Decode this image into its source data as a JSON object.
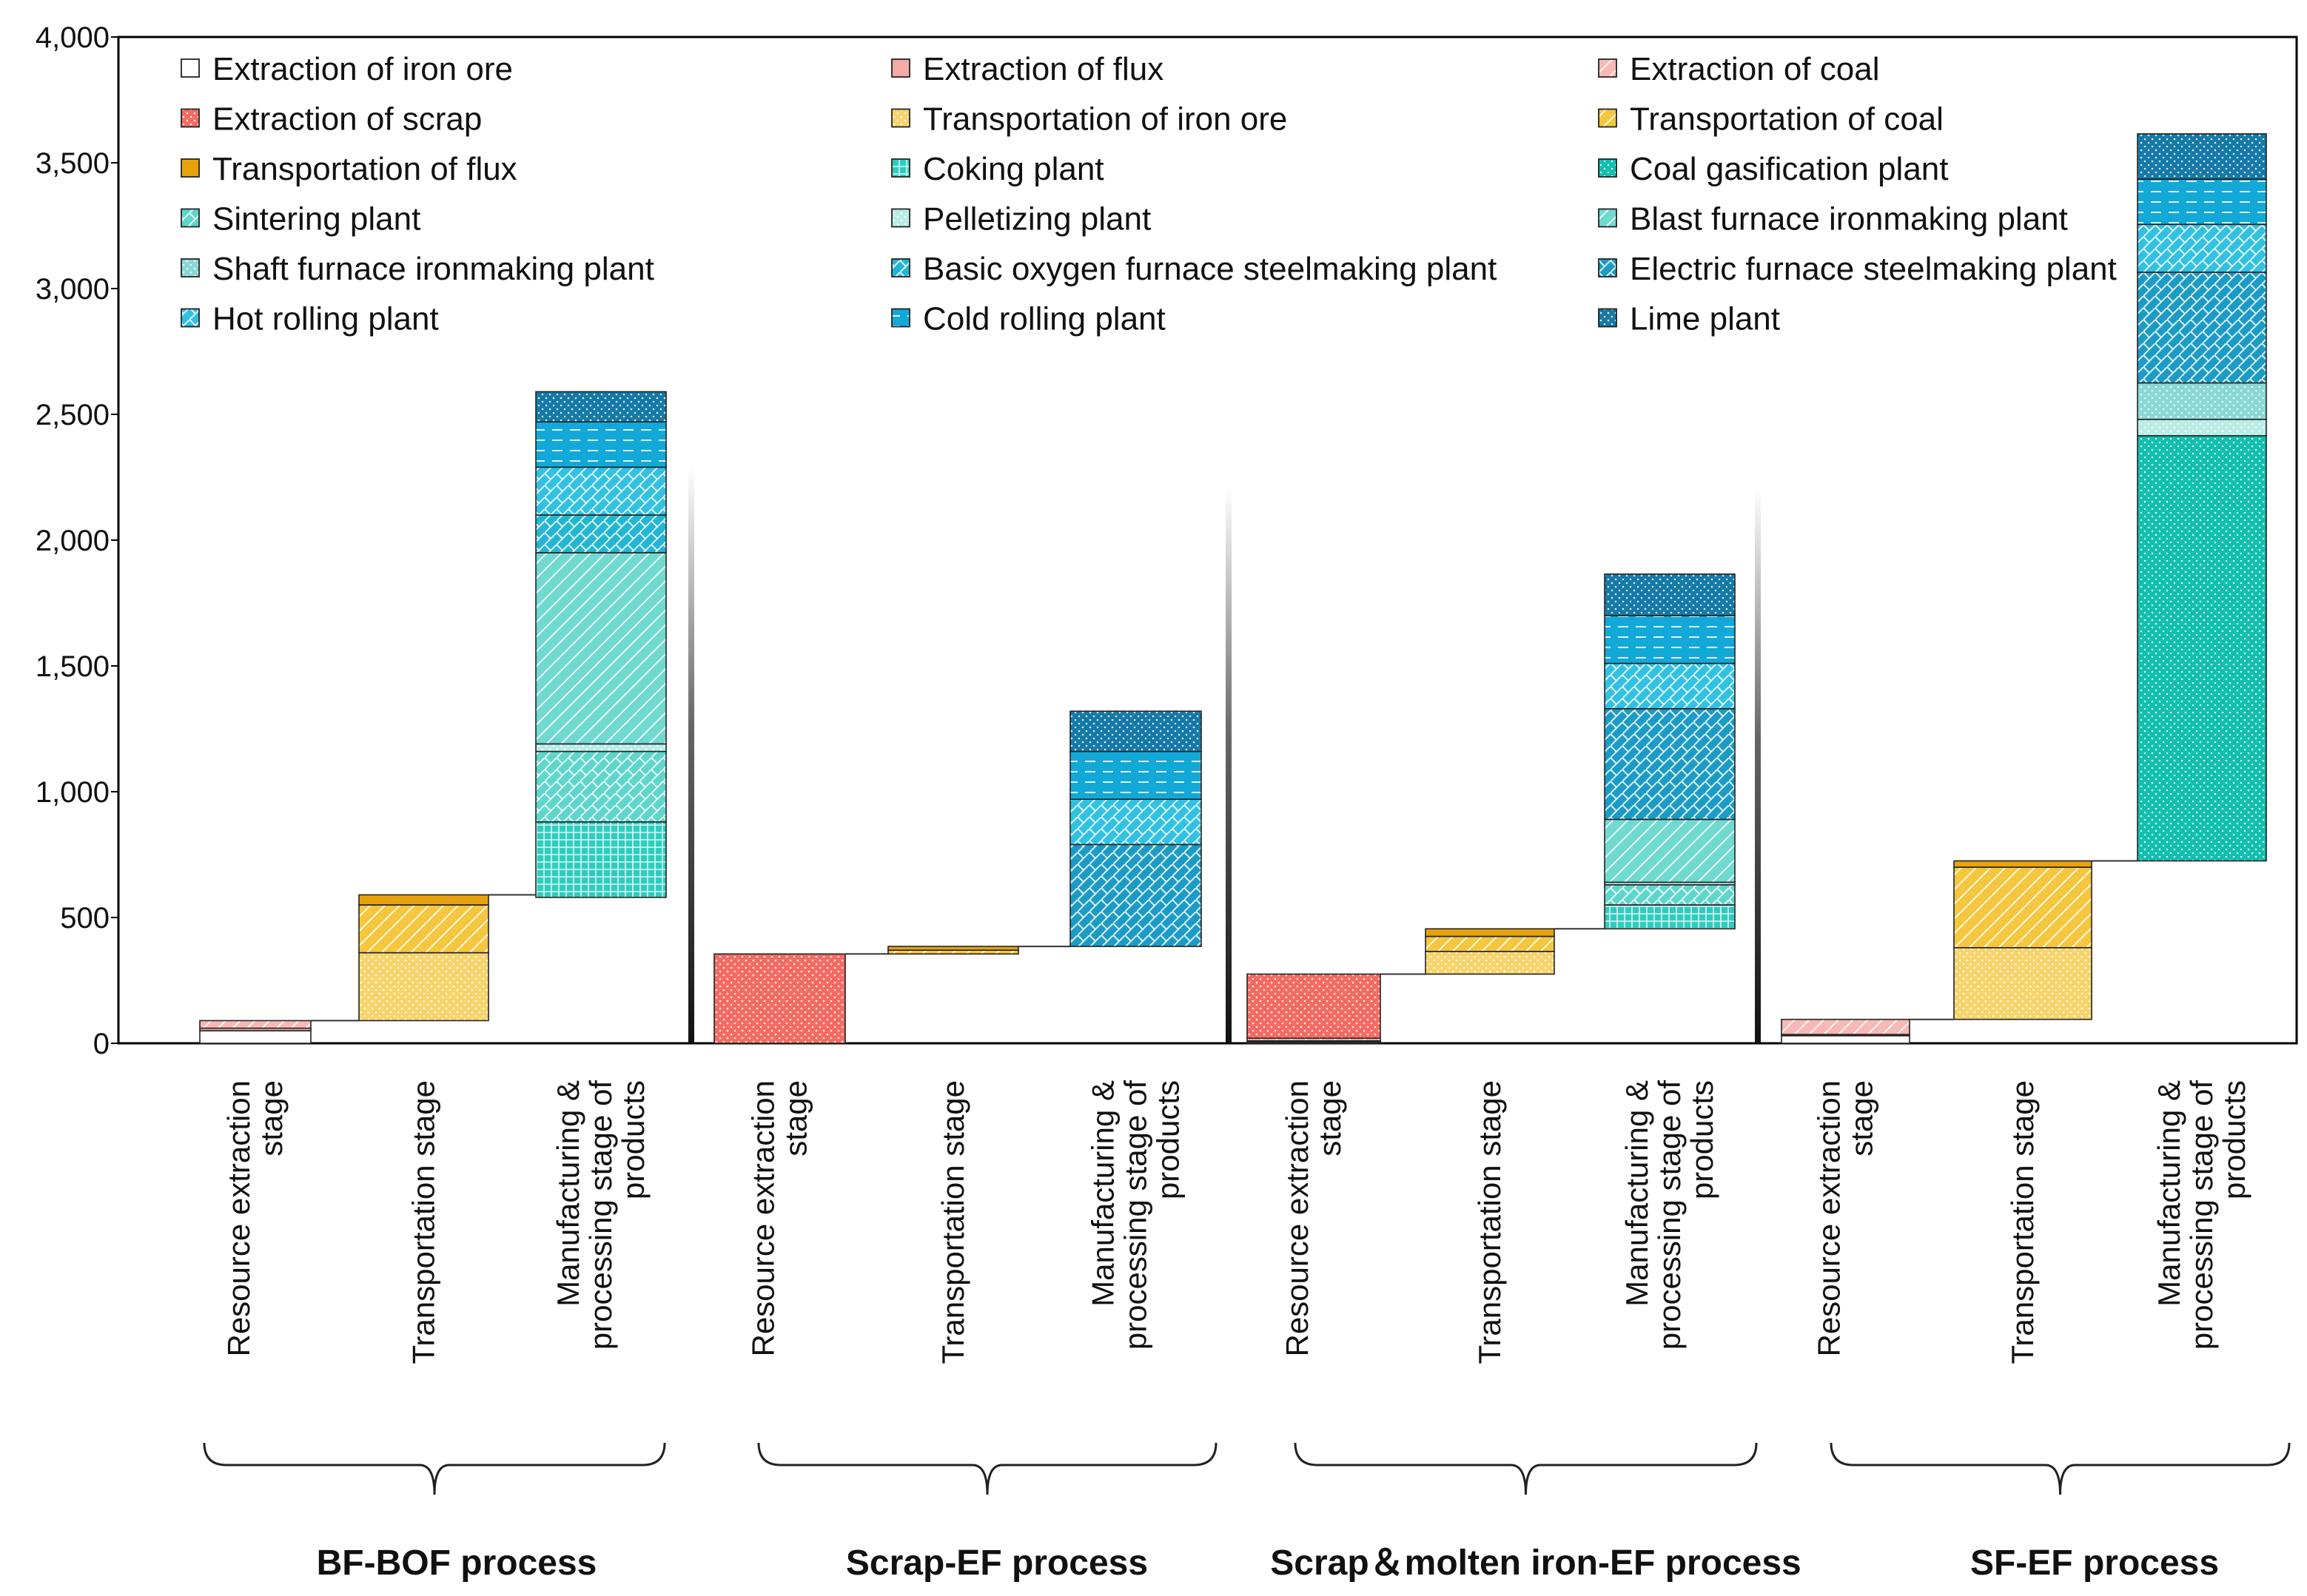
{
  "chart_data": {
    "type": "bar",
    "subtype": "stacked-waterfall",
    "title": "",
    "xlabel": "",
    "ylabel": "",
    "ylim": [
      0,
      4000
    ],
    "yticks": [
      0,
      500,
      1000,
      1500,
      2000,
      2500,
      3000,
      3500,
      4000
    ],
    "ytick_labels": [
      "0",
      "500",
      "1,000",
      "1,500",
      "2,000",
      "2,500",
      "3,000",
      "3,500",
      "4,000"
    ],
    "grid": false,
    "legend_position": "top",
    "legend": [
      {
        "name": "Extraction of iron ore",
        "color": "#ffffff",
        "pattern": "none"
      },
      {
        "name": "Extraction of flux",
        "color": "#f4aaa7",
        "pattern": "none"
      },
      {
        "name": "Extraction of coal",
        "color": "#f8b8b4",
        "pattern": "diag"
      },
      {
        "name": "Extraction of scrap",
        "color": "#f36b63",
        "pattern": "dots"
      },
      {
        "name": "Transportation of iron ore",
        "color": "#f7d46b",
        "pattern": "dots"
      },
      {
        "name": "Transportation of coal",
        "color": "#f5c63e",
        "pattern": "diag"
      },
      {
        "name": "Transportation of flux",
        "color": "#e8a30c",
        "pattern": "none"
      },
      {
        "name": "Coking plant",
        "color": "#2ecdc0",
        "pattern": "grid"
      },
      {
        "name": "Coal gasification plant",
        "color": "#10bfae",
        "pattern": "dots"
      },
      {
        "name": "Sintering plant",
        "color": "#5ed6cc",
        "pattern": "cross"
      },
      {
        "name": "Pelletizing plant",
        "color": "#b9ece7",
        "pattern": "dots"
      },
      {
        "name": "Blast furnace ironmaking plant",
        "color": "#6fdad0",
        "pattern": "diag"
      },
      {
        "name": "Shaft furnace ironmaking plant",
        "color": "#8ad8d6",
        "pattern": "dots"
      },
      {
        "name": "Basic oxygen furnace steelmaking plant",
        "color": "#22b6d4",
        "pattern": "cross"
      },
      {
        "name": "Electric furnace steelmaking plant",
        "color": "#1b9bc6",
        "pattern": "cross"
      },
      {
        "name": "Hot rolling plant",
        "color": "#31c1e3",
        "pattern": "cross"
      },
      {
        "name": "Cold rolling plant",
        "color": "#12a8d8",
        "pattern": "dash"
      },
      {
        "name": "Lime plant",
        "color": "#1479a8",
        "pattern": "dots"
      }
    ],
    "stage_labels": [
      [
        "Resource extraction",
        "stage"
      ],
      [
        "Transportation stage"
      ],
      [
        "Manufacturing  &",
        "processing stage  of",
        "products"
      ]
    ],
    "groups": [
      {
        "process": "BF-BOF process",
        "bars": [
          {
            "base": 0,
            "segments": [
              {
                "series": "Extraction of iron ore",
                "value": 50
              },
              {
                "series": "Extraction of flux",
                "value": 10
              },
              {
                "series": "Extraction of coal",
                "value": 30
              }
            ]
          },
          {
            "base": 90,
            "segments": [
              {
                "series": "Transportation of iron ore",
                "value": 270
              },
              {
                "series": "Transportation of coal",
                "value": 190
              },
              {
                "series": "Transportation of flux",
                "value": 40
              }
            ]
          },
          {
            "base": 580,
            "segments": [
              {
                "series": "Coking plant",
                "value": 300
              },
              {
                "series": "Sintering plant",
                "value": 280
              },
              {
                "series": "Pelletizing plant",
                "value": 30
              },
              {
                "series": "Blast furnace ironmaking plant",
                "value": 760
              },
              {
                "series": "Basic oxygen furnace steelmaking plant",
                "value": 150
              },
              {
                "series": "Hot rolling plant",
                "value": 190
              },
              {
                "series": "Cold rolling plant",
                "value": 180
              },
              {
                "series": "Lime plant",
                "value": 120
              }
            ]
          }
        ]
      },
      {
        "process": "Scrap-EF process",
        "bars": [
          {
            "base": 0,
            "segments": [
              {
                "series": "Extraction of scrap",
                "value": 355
              }
            ]
          },
          {
            "base": 355,
            "segments": [
              {
                "series": "Transportation of coal",
                "value": 15
              },
              {
                "series": "Transportation of flux",
                "value": 15
              }
            ]
          },
          {
            "base": 385,
            "segments": [
              {
                "series": "Electric furnace steelmaking plant",
                "value": 405
              },
              {
                "series": "Hot rolling plant",
                "value": 180
              },
              {
                "series": "Cold rolling plant",
                "value": 190
              },
              {
                "series": "Lime plant",
                "value": 160
              }
            ]
          }
        ]
      },
      {
        "process": "Scrap＆molten iron-EF process",
        "bars": [
          {
            "base": 0,
            "segments": [
              {
                "series": "Extraction of iron ore",
                "value": 5
              },
              {
                "series": "Extraction of flux",
                "value": 5
              },
              {
                "series": "Extraction of coal",
                "value": 10
              },
              {
                "series": "Extraction of scrap",
                "value": 255
              }
            ]
          },
          {
            "base": 275,
            "segments": [
              {
                "series": "Transportation of iron ore",
                "value": 90
              },
              {
                "series": "Transportation of coal",
                "value": 60
              },
              {
                "series": "Transportation of flux",
                "value": 30
              }
            ]
          },
          {
            "base": 455,
            "segments": [
              {
                "series": "Coking plant",
                "value": 95
              },
              {
                "series": "Sintering plant",
                "value": 80
              },
              {
                "series": "Pelletizing plant",
                "value": 10
              },
              {
                "series": "Blast furnace ironmaking plant",
                "value": 250
              },
              {
                "series": "Electric furnace steelmaking plant",
                "value": 440
              },
              {
                "series": "Hot rolling plant",
                "value": 180
              },
              {
                "series": "Cold rolling plant",
                "value": 190
              },
              {
                "series": "Lime plant",
                "value": 165
              }
            ]
          }
        ]
      },
      {
        "process": "SF-EF process",
        "bars": [
          {
            "base": 0,
            "segments": [
              {
                "series": "Extraction of iron ore",
                "value": 30
              },
              {
                "series": "Extraction of flux",
                "value": 5
              },
              {
                "series": "Extraction of coal",
                "value": 60
              }
            ]
          },
          {
            "base": 95,
            "segments": [
              {
                "series": "Transportation of iron ore",
                "value": 285
              },
              {
                "series": "Transportation of coal",
                "value": 320
              },
              {
                "series": "Transportation of flux",
                "value": 25
              }
            ]
          },
          {
            "base": 725,
            "segments": [
              {
                "series": "Coal gasification plant",
                "value": 1690
              },
              {
                "series": "Pelletizing plant",
                "value": 65
              },
              {
                "series": "Shaft furnace ironmaking plant",
                "value": 145
              },
              {
                "series": "Electric furnace steelmaking plant",
                "value": 440
              },
              {
                "series": "Hot rolling plant",
                "value": 190
              },
              {
                "series": "Cold rolling plant",
                "value": 180
              },
              {
                "series": "Lime plant",
                "value": 180
              }
            ]
          }
        ]
      }
    ]
  }
}
